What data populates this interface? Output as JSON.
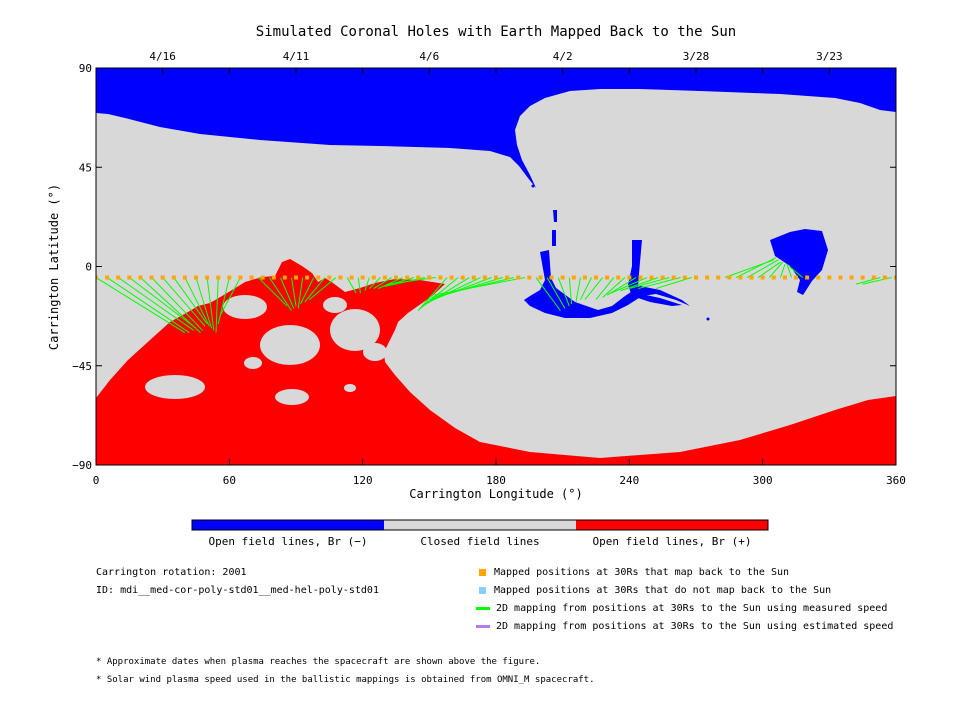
{
  "chart_data": {
    "type": "map",
    "title": "Simulated Coronal Holes with Earth Mapped Back to the Sun",
    "xlabel": "Carrington Longitude (°)",
    "ylabel": "Carrington Latitude (°)",
    "xlim": [
      0,
      360
    ],
    "ylim": [
      -90,
      90
    ],
    "x_ticks": [
      0,
      60,
      120,
      180,
      240,
      300,
      360
    ],
    "y_ticks": [
      -90,
      -45,
      0,
      45,
      90
    ],
    "x_tick_labels": [
      "0",
      "60",
      "120",
      "180",
      "240",
      "300",
      "360"
    ],
    "y_tick_labels": [
      "−90",
      "−45",
      "0",
      "45",
      "90"
    ],
    "top_axis_dates": [
      {
        "label": "4/16",
        "longitude": 30
      },
      {
        "label": "4/11",
        "longitude": 90
      },
      {
        "label": "4/6",
        "longitude": 150
      },
      {
        "label": "4/2",
        "longitude": 210
      },
      {
        "label": "3/28",
        "longitude": 270
      },
      {
        "label": "3/23",
        "longitude": 330
      }
    ],
    "colors": {
      "open_negative": "#0000ff",
      "closed": "#d8d8d8",
      "open_positive": "#ff0000",
      "mapped_point": "#ffa500",
      "unmapped_point": "#87cefa",
      "measured_line": "#00ff00",
      "estimated_line": "#b57cf0"
    },
    "colorbar": {
      "labels": [
        "Open field lines, Br (−)",
        "Closed field lines",
        "Open field lines, Br (+)"
      ]
    },
    "series": [
      {
        "name": "Mapped positions at 30Rs that map back to the Sun",
        "latitude": -5,
        "longitudes_start": 0,
        "longitudes_step": 5,
        "count": 73
      },
      {
        "name": "2D mapping from positions at 30Rs to the Sun using measured speed",
        "segments": [
          {
            "from": [
              0,
              -5
            ],
            "to": [
              40,
              -30
            ]
          },
          {
            "from": [
              5,
              -5
            ],
            "to": [
              42,
              -30
            ]
          },
          {
            "from": [
              10,
              -5
            ],
            "to": [
              44,
              -29
            ]
          },
          {
            "from": [
              15,
              -5
            ],
            "to": [
              45,
              -28
            ]
          },
          {
            "from": [
              20,
              -5
            ],
            "to": [
              47,
              -30
            ]
          },
          {
            "from": [
              25,
              -5
            ],
            "to": [
              48,
              -29
            ]
          },
          {
            "from": [
              30,
              -5
            ],
            "to": [
              49,
              -27
            ]
          },
          {
            "from": [
              35,
              -5
            ],
            "to": [
              50,
              -26
            ]
          },
          {
            "from": [
              40,
              -5
            ],
            "to": [
              51,
              -27
            ]
          },
          {
            "from": [
              45,
              -5
            ],
            "to": [
              52,
              -28
            ]
          },
          {
            "from": [
              50,
              -5
            ],
            "to": [
              53,
              -29
            ]
          },
          {
            "from": [
              55,
              -5
            ],
            "to": [
              54,
              -30
            ]
          },
          {
            "from": [
              60,
              -5
            ],
            "to": [
              55,
              -26
            ]
          },
          {
            "from": [
              65,
              -5
            ],
            "to": [
              56,
              -22
            ]
          },
          {
            "from": [
              73,
              -5
            ],
            "to": [
              86,
              -18
            ]
          },
          {
            "from": [
              78,
              -5
            ],
            "to": [
              88,
              -20
            ]
          },
          {
            "from": [
              83,
              -5
            ],
            "to": [
              89,
              -19
            ]
          },
          {
            "from": [
              88,
              -5
            ],
            "to": [
              90,
              -18
            ]
          },
          {
            "from": [
              93,
              -5
            ],
            "to": [
              91,
              -19
            ]
          },
          {
            "from": [
              98,
              -5
            ],
            "to": [
              92,
              -17
            ]
          },
          {
            "from": [
              103,
              -5
            ],
            "to": [
              94,
              -16
            ]
          },
          {
            "from": [
              108,
              -5
            ],
            "to": [
              96,
              -15
            ]
          },
          {
            "from": [
              113,
              -5
            ],
            "to": [
              117,
              -12
            ]
          },
          {
            "from": [
              118,
              -5
            ],
            "to": [
              119,
              -12
            ]
          },
          {
            "from": [
              123,
              -5
            ],
            "to": [
              121,
              -11
            ]
          },
          {
            "from": [
              128,
              -5
            ],
            "to": [
              123,
              -10
            ]
          },
          {
            "from": [
              133,
              -5
            ],
            "to": [
              125,
              -10
            ]
          },
          {
            "from": [
              138,
              -5
            ],
            "to": [
              127,
              -10
            ]
          },
          {
            "from": [
              143,
              -5
            ],
            "to": [
              129,
              -9
            ]
          },
          {
            "from": [
              148,
              -5
            ],
            "to": [
              130,
              -9
            ]
          },
          {
            "from": [
              153,
              -5
            ],
            "to": [
              131,
              -8
            ]
          },
          {
            "from": [
              158,
              -5
            ],
            "to": [
              145,
              -20
            ]
          },
          {
            "from": [
              163,
              -5
            ],
            "to": [
              146,
              -19
            ]
          },
          {
            "from": [
              168,
              -5
            ],
            "to": [
              147,
              -18
            ]
          },
          {
            "from": [
              173,
              -5
            ],
            "to": [
              148,
              -17
            ]
          },
          {
            "from": [
              178,
              -5
            ],
            "to": [
              149,
              -16
            ]
          },
          {
            "from": [
              183,
              -5
            ],
            "to": [
              150,
              -15
            ]
          },
          {
            "from": [
              188,
              -5
            ],
            "to": [
              151,
              -14
            ]
          },
          {
            "from": [
              193,
              -5
            ],
            "to": [
              152,
              -13
            ]
          },
          {
            "from": [
              198,
              -5
            ],
            "to": [
              209,
              -20
            ]
          },
          {
            "from": [
              203,
              -5
            ],
            "to": [
              211,
              -19
            ]
          },
          {
            "from": [
              208,
              -5
            ],
            "to": [
              213,
              -18
            ]
          },
          {
            "from": [
              213,
              -5
            ],
            "to": [
              214,
              -17
            ]
          },
          {
            "from": [
              218,
              -5
            ],
            "to": [
              216,
              -16
            ]
          },
          {
            "from": [
              223,
              -5
            ],
            "to": [
              218,
              -15
            ]
          },
          {
            "from": [
              228,
              -5
            ],
            "to": [
              220,
              -15
            ]
          },
          {
            "from": [
              233,
              -5
            ],
            "to": [
              225,
              -15
            ]
          },
          {
            "from": [
              238,
              -5
            ],
            "to": [
              228,
              -14
            ]
          },
          {
            "from": [
              243,
              -5
            ],
            "to": [
              230,
              -13
            ]
          },
          {
            "from": [
              248,
              -5
            ],
            "to": [
              232,
              -12
            ]
          },
          {
            "from": [
              253,
              -5
            ],
            "to": [
              236,
              -11
            ]
          },
          {
            "from": [
              258,
              -5
            ],
            "to": [
              240,
              -10
            ]
          },
          {
            "from": [
              263,
              -5
            ],
            "to": [
              244,
              -10
            ]
          },
          {
            "from": [
              268,
              -5
            ],
            "to": [
              252,
              -10
            ]
          },
          {
            "from": [
              283,
              -5
            ],
            "to": [
              305,
              3
            ]
          },
          {
            "from": [
              288,
              -5
            ],
            "to": [
              306,
              4
            ]
          },
          {
            "from": [
              293,
              -5
            ],
            "to": [
              307,
              3
            ]
          },
          {
            "from": [
              298,
              -5
            ],
            "to": [
              308,
              2
            ]
          },
          {
            "from": [
              303,
              -5
            ],
            "to": [
              309,
              2
            ]
          },
          {
            "from": [
              308,
              -5
            ],
            "to": [
              310,
              1
            ]
          },
          {
            "from": [
              313,
              -5
            ],
            "to": [
              311,
              1
            ]
          },
          {
            "from": [
              318,
              -5
            ],
            "to": [
              312,
              0
            ]
          },
          {
            "from": [
              353,
              -5
            ],
            "to": [
              342,
              -8
            ]
          },
          {
            "from": [
              358,
              -5
            ],
            "to": [
              345,
              -8
            ]
          }
        ]
      }
    ],
    "legend": [
      {
        "label": "Mapped positions at 30Rs that map back to the Sun",
        "color": "#ffa500",
        "kind": "square"
      },
      {
        "label": "Mapped positions at 30Rs that do not map back to the Sun",
        "color": "#87cefa",
        "kind": "square"
      },
      {
        "label": "2D mapping from positions at 30Rs to the Sun using measured speed",
        "color": "#00ff00",
        "kind": "line"
      },
      {
        "label": "2D mapping from positions at 30Rs to the Sun using estimated speed",
        "color": "#b57cf0",
        "kind": "line"
      }
    ]
  },
  "info": {
    "rotation": "Carrington rotation: 2001",
    "id": "ID: mdi__med-cor-poly-std01__med-hel-poly-std01"
  },
  "footnotes": [
    "* Approximate dates when plasma reaches the spacecraft are shown above the figure.",
    "* Solar wind plasma speed used in the ballistic mappings is obtained from OMNI_M spacecraft."
  ]
}
